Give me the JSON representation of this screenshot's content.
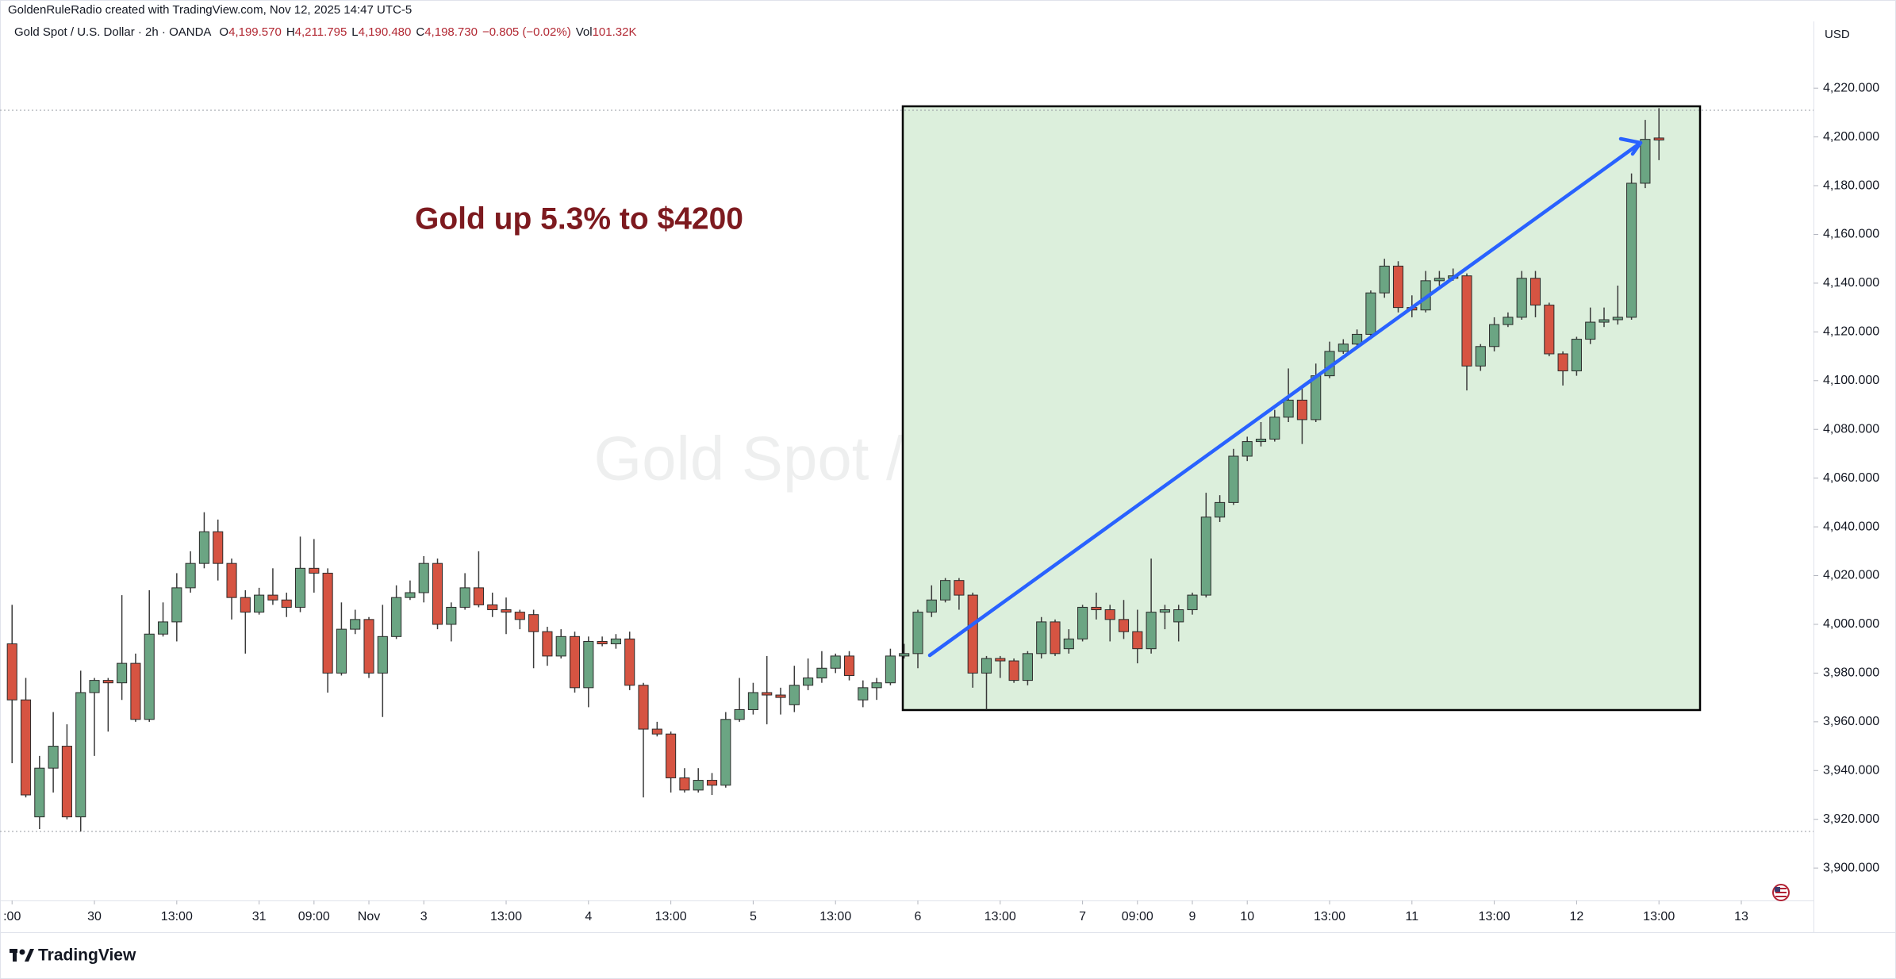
{
  "header": {
    "credit": "GoldenRuleRadio created with TradingView.com, Nov 12, 2025 14:47 UTC-5"
  },
  "legend": {
    "symbol": "Gold Spot / U.S. Dollar · 2h · OANDA",
    "items": [
      {
        "key": "O",
        "value": "4,199.570"
      },
      {
        "key": "H",
        "value": "4,211.795"
      },
      {
        "key": "L",
        "value": "4,190.480"
      },
      {
        "key": "C",
        "value": "4,198.730"
      }
    ],
    "change": "−0.805 (−0.02%)",
    "volume": {
      "key": "Vol",
      "value": "101.32K"
    }
  },
  "chart_data": {
    "type": "candlestick",
    "watermark": "Gold Spot / U.S. Dollar",
    "annotation": "Gold up 5.3% to $4200",
    "currency": "USD",
    "up_color": "#6ba583",
    "down_color": "#d65442",
    "grid": false,
    "xlim": [
      -0.88,
      131.26
    ],
    "xticks": [
      {
        "value": 0,
        "label": ":00"
      },
      {
        "value": 6,
        "label": "30"
      },
      {
        "value": 12,
        "label": "13:00"
      },
      {
        "value": 18,
        "label": "31"
      },
      {
        "value": 22,
        "label": "09:00"
      },
      {
        "value": 26,
        "label": "Nov"
      },
      {
        "value": 30,
        "label": "3"
      },
      {
        "value": 36,
        "label": "13:00"
      },
      {
        "value": 42,
        "label": "4"
      },
      {
        "value": 48,
        "label": "13:00"
      },
      {
        "value": 54,
        "label": "5"
      },
      {
        "value": 60,
        "label": "13:00"
      },
      {
        "value": 66,
        "label": "6"
      },
      {
        "value": 72,
        "label": "13:00"
      },
      {
        "value": 78,
        "label": "7"
      },
      {
        "value": 82,
        "label": "09:00"
      },
      {
        "value": 86,
        "label": "9"
      },
      {
        "value": 90,
        "label": "10"
      },
      {
        "value": 96,
        "label": "13:00"
      },
      {
        "value": 102,
        "label": "11"
      },
      {
        "value": 108,
        "label": "13:00"
      },
      {
        "value": 114,
        "label": "12"
      },
      {
        "value": 120,
        "label": "13:00"
      },
      {
        "value": 126,
        "label": "13"
      }
    ],
    "ylim": [
      3886.7,
      4247.4
    ],
    "yticks": [
      {
        "value": 3900,
        "label": "3,900.000"
      },
      {
        "value": 3920,
        "label": "3,920.000"
      },
      {
        "value": 3940,
        "label": "3,940.000"
      },
      {
        "value": 3960,
        "label": "3,960.000"
      },
      {
        "value": 3980,
        "label": "3,980.000"
      },
      {
        "value": 4000,
        "label": "4,000.000"
      },
      {
        "value": 4020,
        "label": "4,020.000"
      },
      {
        "value": 4040,
        "label": "4,040.000"
      },
      {
        "value": 4060,
        "label": "4,060.000"
      },
      {
        "value": 4080,
        "label": "4,080.000"
      },
      {
        "value": 4100,
        "label": "4,100.000"
      },
      {
        "value": 4120,
        "label": "4,120.000"
      },
      {
        "value": 4140,
        "label": "4,140.000"
      },
      {
        "value": 4160,
        "label": "4,160.000"
      },
      {
        "value": 4180,
        "label": "4,180.000"
      },
      {
        "value": 4200,
        "label": "4,200.000"
      },
      {
        "value": 4220,
        "label": "4,220.000"
      }
    ],
    "open": [
      3992,
      3969,
      3921,
      3941,
      3950,
      3921,
      3972,
      3977,
      3976,
      3984,
      3961,
      3996,
      4001,
      4015,
      4025,
      4038,
      4025,
      4011,
      4005,
      4012,
      4010,
      4007,
      4023,
      4021,
      3980,
      3998,
      4002,
      3980,
      3995,
      4011,
      4013,
      4025,
      4000,
      4007,
      4015,
      4008,
      4006,
      4005,
      4004,
      3997,
      3987,
      3995,
      3974,
      3993,
      3992,
      3994,
      3975,
      3957,
      3955,
      3937,
      3932,
      3936,
      3934,
      3961,
      3965,
      3972,
      3971,
      3967,
      3975,
      3978,
      3982,
      3987,
      3969,
      3974,
      3976,
      3987,
      3988,
      4005,
      4010,
      4018,
      4012,
      3980,
      3986,
      3985,
      3977,
      3988,
      4001,
      3990,
      3994,
      4007,
      4006,
      4002,
      3997,
      3990,
      4005,
      4001,
      4006,
      4012,
      4044,
      4050,
      4069,
      4075,
      4076,
      4085,
      4092,
      4084,
      4102,
      4112,
      4115,
      4119,
      4136,
      4147,
      4130,
      4129,
      4141,
      4142,
      4143,
      4106,
      4114,
      4123,
      4126,
      4142,
      4131,
      4111,
      4104,
      4117,
      4124,
      4125,
      4126,
      4181,
      4199.57
    ],
    "high": [
      4008,
      3978,
      3946,
      3964,
      3959,
      3981,
      3978,
      3978,
      4012,
      3988,
      4014,
      4009,
      4021,
      4030,
      4046,
      4043,
      4027,
      4014,
      4015,
      4023,
      4013,
      4036,
      4035,
      4023,
      4009,
      4006,
      4003,
      4008,
      4016,
      4018,
      4028,
      4027,
      4009,
      4021,
      4030,
      4013,
      4011,
      4006,
      4006,
      3999,
      3998,
      3997,
      3995,
      3995,
      3996,
      3997,
      3976,
      3960,
      3956,
      3941,
      3941,
      3939,
      3964,
      3978,
      3976,
      3987,
      3974,
      3983,
      3986,
      3989,
      3988,
      3989,
      3977,
      3978,
      3990,
      3992,
      4006,
      4016,
      4019,
      4019,
      4013,
      3987,
      3987,
      3986,
      3989,
      4003,
      4002,
      3998,
      4008,
      4013,
      4008,
      4010,
      4006,
      4027,
      4008,
      4008,
      4013,
      4054,
      4053,
      4072,
      4077,
      4083,
      4088,
      4105,
      4098,
      4107,
      4116,
      4117,
      4121,
      4137,
      4150,
      4149,
      4135,
      4145,
      4145,
      4146,
      4144,
      4115,
      4126,
      4128,
      4145,
      4145,
      4132,
      4112,
      4118,
      4130,
      4130,
      4139,
      4185,
      4207,
      4211.795
    ],
    "low": [
      3943,
      3929,
      3916,
      3931,
      3920,
      3915,
      3946,
      3956,
      3969,
      3960,
      3960,
      3995,
      3993,
      4013,
      4023,
      4018,
      4002,
      3988,
      4004,
      4008,
      4003,
      4005,
      4013,
      3972,
      3979,
      3996,
      3978,
      3962,
      3994,
      4010,
      4009,
      3998,
      3993,
      4006,
      4007,
      4003,
      3996,
      3998,
      3982,
      3983,
      3986,
      3972,
      3966,
      3991,
      3990,
      3973,
      3929,
      3954,
      3931,
      3931,
      3931,
      3930,
      3933,
      3960,
      3963,
      3959,
      3963,
      3964,
      3973,
      3976,
      3980,
      3977,
      3966,
      3969,
      3975,
      3986,
      3982,
      4003,
      4009,
      4006,
      3974,
      3965,
      3978,
      3976,
      3975,
      3986,
      3987,
      3988,
      3993,
      4002,
      3993,
      3994,
      3984,
      3988,
      3998,
      3993,
      4004,
      4011,
      4042,
      4049,
      4067,
      4073,
      4075,
      4083,
      4074,
      4083,
      4101,
      4111,
      4114,
      4117,
      4134,
      4128,
      4126,
      4128,
      4139,
      4141,
      4096,
      4104,
      4112,
      4122,
      4125,
      4126,
      4110,
      4098,
      4102,
      4115,
      4122,
      4123,
      4125,
      4179,
      4190.48
    ],
    "close": [
      3969,
      3930,
      3941,
      3950,
      3921,
      3972,
      3977,
      3976,
      3984,
      3961,
      3996,
      4001,
      4015,
      4025,
      4038,
      4025,
      4011,
      4005,
      4012,
      4010,
      4007,
      4023,
      4021,
      3980,
      3998,
      4002,
      3980,
      3995,
      4011,
      4013,
      4025,
      4000,
      4007,
      4015,
      4008,
      4006,
      4005,
      4002,
      3997,
      3987,
      3995,
      3974,
      3993,
      3992,
      3994,
      3975,
      3957,
      3955,
      3937,
      3932,
      3936,
      3934,
      3961,
      3965,
      3972,
      3971,
      3970,
      3975,
      3978,
      3982,
      3987,
      3979,
      3974,
      3976,
      3987,
      3988,
      4005,
      4010,
      4018,
      4012,
      3980,
      3986,
      3985,
      3977,
      3988,
      4001,
      3988,
      3994,
      4007,
      4006,
      4002,
      3997,
      3990,
      4005,
      4006,
      4006,
      4012,
      4044,
      4050,
      4069,
      4075,
      4076,
      4085,
      4092,
      4084,
      4102,
      4112,
      4115,
      4119,
      4136,
      4147,
      4130,
      4129,
      4141,
      4142,
      4143,
      4106,
      4114,
      4123,
      4126,
      4142,
      4131,
      4111,
      4104,
      4117,
      4124,
      4125,
      4126,
      4181,
      4199,
      4198.73
    ]
  },
  "footer": {
    "logo": "TradingView"
  }
}
